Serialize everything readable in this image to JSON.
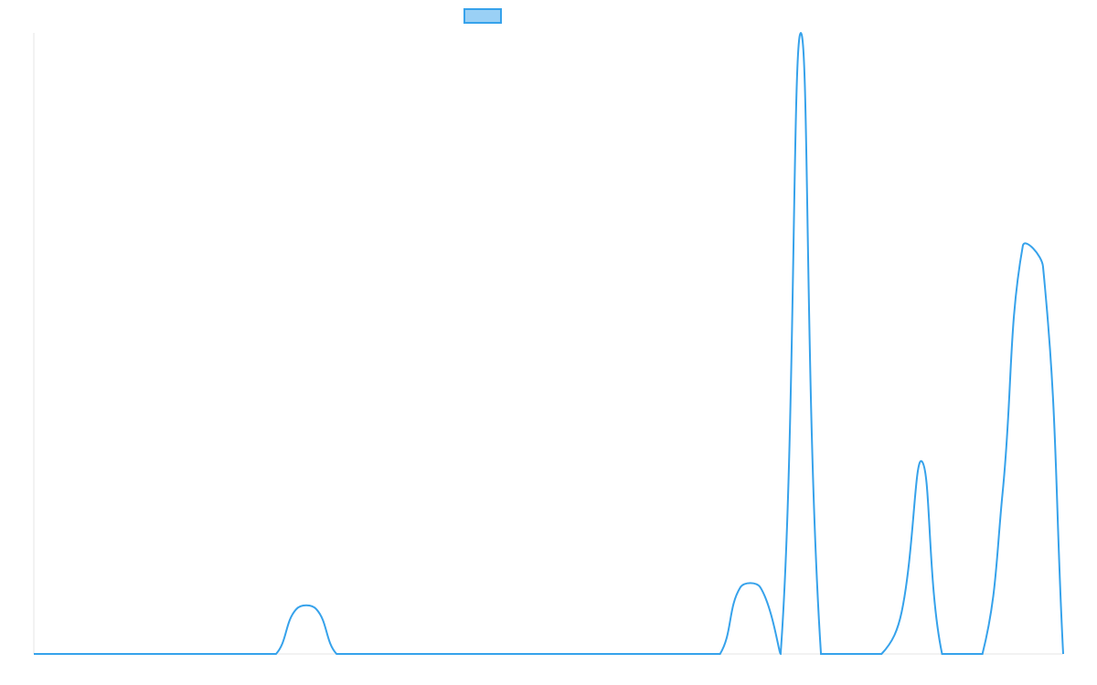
{
  "chart_data": {
    "type": "line",
    "color": "#36a2eb",
    "legend_fill": "#9ad0f5",
    "legend": "top",
    "ylim": [
      0,
      100
    ],
    "values": [
      0,
      0,
      0,
      0,
      0,
      0,
      0,
      0,
      0,
      0,
      0,
      0,
      0,
      7.2,
      7.2,
      0,
      0,
      0,
      0,
      0,
      0,
      0,
      0,
      0,
      0,
      0,
      0,
      0,
      0,
      0,
      0,
      0,
      0,
      0,
      0,
      10.7,
      10.7,
      0,
      100,
      0,
      0,
      0,
      0,
      6.8,
      31,
      0,
      0,
      0,
      26,
      65.7,
      62.4,
      0
    ]
  }
}
